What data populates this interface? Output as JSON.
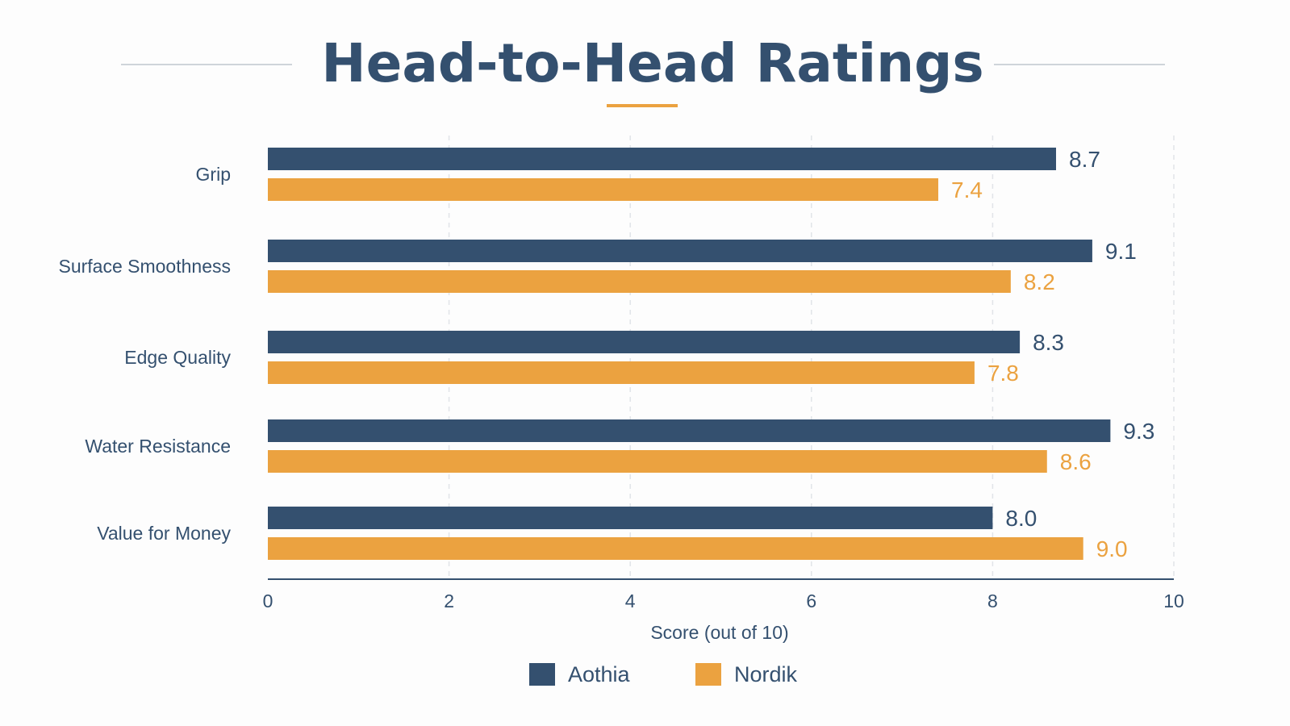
{
  "chart_data": {
    "type": "bar",
    "orientation": "horizontal",
    "title": "Head-to-Head Ratings",
    "xlabel": "Score (out of 10)",
    "ylabel": "",
    "xlim": [
      0,
      10
    ],
    "x_ticks": [
      "0",
      "2",
      "4",
      "6",
      "8",
      "10"
    ],
    "grid": "vertical dashed",
    "legend_position": "bottom-center",
    "categories": [
      "Grip",
      "Surface Smoothness",
      "Edge Quality",
      "Water Resistance",
      "Value for Money"
    ],
    "series": [
      {
        "name": "Aothia",
        "color": "#34506f",
        "values": [
          8.7,
          9.1,
          8.3,
          9.3,
          8.0
        ],
        "labels": [
          "8.7",
          "9.1",
          "8.3",
          "9.3",
          "8.0"
        ]
      },
      {
        "name": "Nordik",
        "color": "#eba240",
        "values": [
          7.4,
          8.2,
          7.8,
          8.6,
          9.0
        ],
        "labels": [
          "7.4",
          "8.2",
          "7.8",
          "8.6",
          "9.0"
        ]
      }
    ]
  },
  "colors": {
    "title": "#34506f",
    "text": "#34506f",
    "accent_underline": "#eba240",
    "rule": "#cfd4da",
    "grid": "#e1e4e8",
    "axis": "#34506f"
  }
}
